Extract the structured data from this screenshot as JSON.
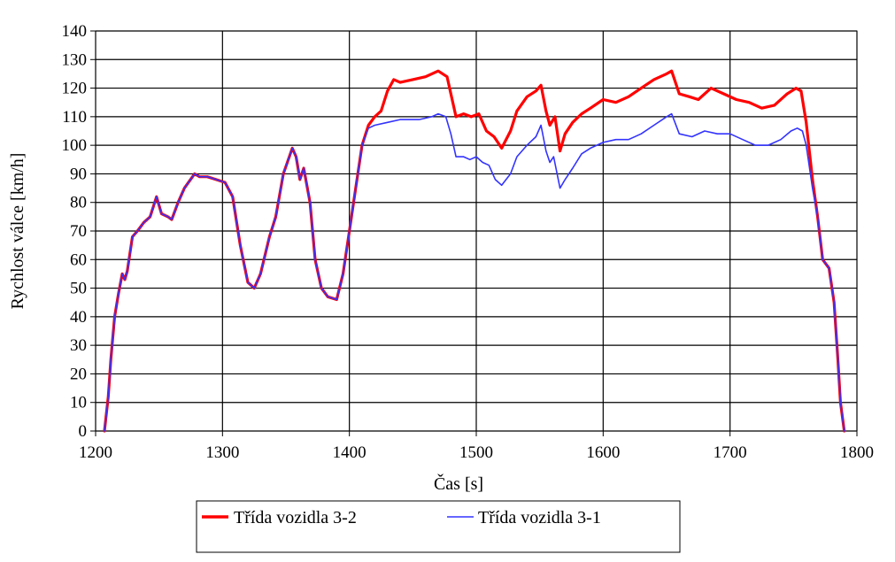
{
  "chart_data": {
    "type": "line",
    "xlabel": "Čas  [s]",
    "ylabel": "Rychlost  válce  [km/h]",
    "xlim": [
      1200,
      1800
    ],
    "ylim": [
      0,
      140
    ],
    "xticks": [
      1200,
      1300,
      1400,
      1500,
      1600,
      1700,
      1800
    ],
    "yticks": [
      0,
      10,
      20,
      30,
      40,
      50,
      60,
      70,
      80,
      90,
      100,
      110,
      120,
      130,
      140
    ],
    "grid": true,
    "legend_position": "bottom",
    "series": [
      {
        "name": "Třída  vozidla  3-2",
        "color": "#ff0000",
        "points": [
          [
            1207,
            0
          ],
          [
            1210,
            12
          ],
          [
            1212,
            25
          ],
          [
            1215,
            40
          ],
          [
            1218,
            48
          ],
          [
            1221,
            55
          ],
          [
            1223,
            53
          ],
          [
            1225,
            56
          ],
          [
            1229,
            68
          ],
          [
            1233,
            70
          ],
          [
            1238,
            73
          ],
          [
            1243,
            75
          ],
          [
            1248,
            82
          ],
          [
            1252,
            76
          ],
          [
            1257,
            75
          ],
          [
            1260,
            74
          ],
          [
            1265,
            80
          ],
          [
            1270,
            85
          ],
          [
            1278,
            90
          ],
          [
            1282,
            89
          ],
          [
            1288,
            89
          ],
          [
            1295,
            88
          ],
          [
            1302,
            87
          ],
          [
            1308,
            82
          ],
          [
            1314,
            65
          ],
          [
            1320,
            52
          ],
          [
            1325,
            50
          ],
          [
            1330,
            55
          ],
          [
            1337,
            68
          ],
          [
            1342,
            75
          ],
          [
            1348,
            90
          ],
          [
            1355,
            99
          ],
          [
            1358,
            96
          ],
          [
            1361,
            88
          ],
          [
            1364,
            92
          ],
          [
            1369,
            80
          ],
          [
            1373,
            60
          ],
          [
            1378,
            50
          ],
          [
            1383,
            47
          ],
          [
            1390,
            46
          ],
          [
            1395,
            55
          ],
          [
            1400,
            70
          ],
          [
            1405,
            85
          ],
          [
            1410,
            100
          ],
          [
            1415,
            107
          ],
          [
            1420,
            110
          ],
          [
            1425,
            112
          ],
          [
            1430,
            119
          ],
          [
            1435,
            123
          ],
          [
            1440,
            122
          ],
          [
            1450,
            123
          ],
          [
            1460,
            124
          ],
          [
            1470,
            126
          ],
          [
            1477,
            124
          ],
          [
            1480,
            118
          ],
          [
            1484,
            110
          ],
          [
            1490,
            111
          ],
          [
            1496,
            110
          ],
          [
            1502,
            111
          ],
          [
            1508,
            105
          ],
          [
            1514,
            103
          ],
          [
            1520,
            99
          ],
          [
            1527,
            105
          ],
          [
            1532,
            112
          ],
          [
            1540,
            117
          ],
          [
            1547,
            119
          ],
          [
            1551,
            121
          ],
          [
            1555,
            112
          ],
          [
            1558,
            107
          ],
          [
            1562,
            110
          ],
          [
            1566,
            98
          ],
          [
            1570,
            104
          ],
          [
            1576,
            108
          ],
          [
            1583,
            111
          ],
          [
            1590,
            113
          ],
          [
            1600,
            116
          ],
          [
            1610,
            115
          ],
          [
            1620,
            117
          ],
          [
            1630,
            120
          ],
          [
            1640,
            123
          ],
          [
            1650,
            125
          ],
          [
            1654,
            126
          ],
          [
            1660,
            118
          ],
          [
            1668,
            117
          ],
          [
            1675,
            116
          ],
          [
            1685,
            120
          ],
          [
            1695,
            118
          ],
          [
            1705,
            116
          ],
          [
            1715,
            115
          ],
          [
            1725,
            113
          ],
          [
            1735,
            114
          ],
          [
            1745,
            118
          ],
          [
            1752,
            120
          ],
          [
            1756,
            119
          ],
          [
            1760,
            108
          ],
          [
            1765,
            88
          ],
          [
            1769,
            75
          ],
          [
            1773,
            60
          ],
          [
            1778,
            57
          ],
          [
            1782,
            45
          ],
          [
            1785,
            25
          ],
          [
            1787,
            10
          ],
          [
            1790,
            0
          ]
        ]
      },
      {
        "name": "Třída  vozidla  3-1",
        "color": "#3333ff",
        "points": [
          [
            1207,
            0
          ],
          [
            1210,
            12
          ],
          [
            1212,
            25
          ],
          [
            1215,
            40
          ],
          [
            1218,
            48
          ],
          [
            1221,
            55
          ],
          [
            1223,
            53
          ],
          [
            1225,
            56
          ],
          [
            1229,
            68
          ],
          [
            1233,
            70
          ],
          [
            1238,
            73
          ],
          [
            1243,
            75
          ],
          [
            1248,
            82
          ],
          [
            1252,
            76
          ],
          [
            1257,
            75
          ],
          [
            1260,
            74
          ],
          [
            1265,
            80
          ],
          [
            1270,
            85
          ],
          [
            1278,
            90
          ],
          [
            1282,
            89
          ],
          [
            1288,
            89
          ],
          [
            1295,
            88
          ],
          [
            1302,
            87
          ],
          [
            1308,
            82
          ],
          [
            1314,
            65
          ],
          [
            1320,
            52
          ],
          [
            1325,
            50
          ],
          [
            1330,
            55
          ],
          [
            1337,
            68
          ],
          [
            1342,
            75
          ],
          [
            1348,
            90
          ],
          [
            1355,
            99
          ],
          [
            1358,
            96
          ],
          [
            1361,
            88
          ],
          [
            1364,
            92
          ],
          [
            1369,
            80
          ],
          [
            1373,
            60
          ],
          [
            1378,
            50
          ],
          [
            1383,
            47
          ],
          [
            1390,
            46
          ],
          [
            1395,
            55
          ],
          [
            1400,
            70
          ],
          [
            1405,
            85
          ],
          [
            1410,
            100
          ],
          [
            1415,
            106
          ],
          [
            1420,
            107
          ],
          [
            1430,
            108
          ],
          [
            1440,
            109
          ],
          [
            1455,
            109
          ],
          [
            1465,
            110
          ],
          [
            1470,
            111
          ],
          [
            1476,
            110
          ],
          [
            1480,
            104
          ],
          [
            1484,
            96
          ],
          [
            1490,
            96
          ],
          [
            1495,
            95
          ],
          [
            1500,
            96
          ],
          [
            1505,
            94
          ],
          [
            1510,
            93
          ],
          [
            1515,
            88
          ],
          [
            1520,
            86
          ],
          [
            1527,
            90
          ],
          [
            1532,
            96
          ],
          [
            1540,
            100
          ],
          [
            1547,
            103
          ],
          [
            1551,
            107
          ],
          [
            1555,
            98
          ],
          [
            1558,
            94
          ],
          [
            1561,
            96
          ],
          [
            1566,
            85
          ],
          [
            1570,
            88
          ],
          [
            1576,
            92
          ],
          [
            1583,
            97
          ],
          [
            1590,
            99
          ],
          [
            1600,
            101
          ],
          [
            1610,
            102
          ],
          [
            1620,
            102
          ],
          [
            1630,
            104
          ],
          [
            1640,
            107
          ],
          [
            1650,
            110
          ],
          [
            1654,
            111
          ],
          [
            1660,
            104
          ],
          [
            1670,
            103
          ],
          [
            1680,
            105
          ],
          [
            1690,
            104
          ],
          [
            1700,
            104
          ],
          [
            1710,
            102
          ],
          [
            1720,
            100
          ],
          [
            1730,
            100
          ],
          [
            1740,
            102
          ],
          [
            1748,
            105
          ],
          [
            1753,
            106
          ],
          [
            1757,
            105
          ],
          [
            1760,
            100
          ],
          [
            1765,
            85
          ],
          [
            1769,
            75
          ],
          [
            1773,
            60
          ],
          [
            1778,
            57
          ],
          [
            1782,
            45
          ],
          [
            1785,
            25
          ],
          [
            1787,
            10
          ],
          [
            1790,
            0
          ]
        ]
      }
    ]
  }
}
